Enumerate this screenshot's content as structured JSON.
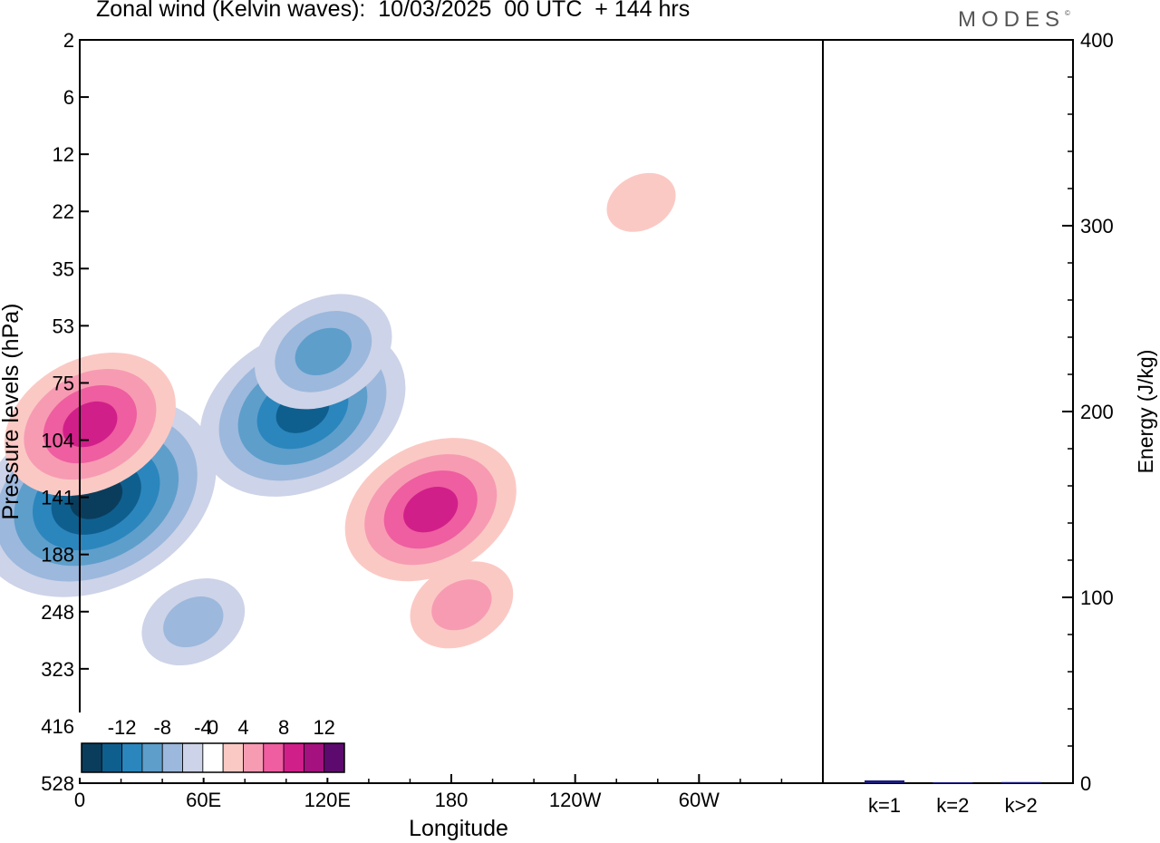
{
  "title": "Zonal wind (Kelvin waves):  10/03/2025  00 UTC  + 144 hrs",
  "brand": "MODES",
  "chart_data": [
    {
      "type": "heatmap",
      "xlabel": "Longitude",
      "ylabel": "Pressure levels (hPa)",
      "x_ticks": [
        "0",
        "60E",
        "120E",
        "180",
        "120W",
        "60W"
      ],
      "x_tick_degrees": [
        0,
        60,
        120,
        180,
        240,
        300
      ],
      "xlim": [
        0,
        360
      ],
      "y_ticks": [
        "2",
        "6",
        "12",
        "22",
        "35",
        "53",
        "75",
        "104",
        "141",
        "188",
        "248",
        "323",
        "416",
        "528"
      ],
      "colorbar": {
        "labels": [
          "-12",
          "-8",
          "-4",
          "0",
          "4",
          "8",
          "12"
        ],
        "levels": [
          -14,
          -12,
          -10,
          -8,
          -6,
          -4,
          -2,
          2,
          4,
          6,
          8,
          10,
          12,
          14
        ],
        "colors": [
          "#0a3d5c",
          "#0f5f8e",
          "#2b86bd",
          "#5e9ecb",
          "#9cb8dc",
          "#cdd3e8",
          "#ffffff",
          "#fbc9c4",
          "#f79bb3",
          "#ee5ea0",
          "#d11f8a",
          "#a5117e",
          "#5d0a6e"
        ]
      },
      "regions": [
        {
          "sign": "negative",
          "peak": -12,
          "lon": 8,
          "level": 141
        },
        {
          "sign": "negative",
          "peak": -10,
          "lon": 108,
          "level": 88
        },
        {
          "sign": "negative",
          "peak": -6,
          "lon": 118,
          "level": 62
        },
        {
          "sign": "negative",
          "peak": -4,
          "lon": 55,
          "level": 260
        },
        {
          "sign": "positive",
          "peak": 8,
          "lon": 5,
          "level": 95
        },
        {
          "sign": "positive",
          "peak": 8,
          "lon": 170,
          "level": 150
        },
        {
          "sign": "positive",
          "peak": 4,
          "lon": 185,
          "level": 240
        },
        {
          "sign": "positive",
          "peak": 2,
          "lon": 272,
          "level": 20
        }
      ]
    },
    {
      "type": "bar",
      "ylabel": "Energy (J/kg)",
      "ylim": [
        0,
        400
      ],
      "y_ticks": [
        "0",
        "100",
        "200",
        "300",
        "400"
      ],
      "categories": [
        "k=1",
        "k=2",
        "k>2"
      ],
      "values": [
        1.5,
        0.5,
        0.6
      ],
      "bar_color": "#1a1a7a"
    }
  ]
}
